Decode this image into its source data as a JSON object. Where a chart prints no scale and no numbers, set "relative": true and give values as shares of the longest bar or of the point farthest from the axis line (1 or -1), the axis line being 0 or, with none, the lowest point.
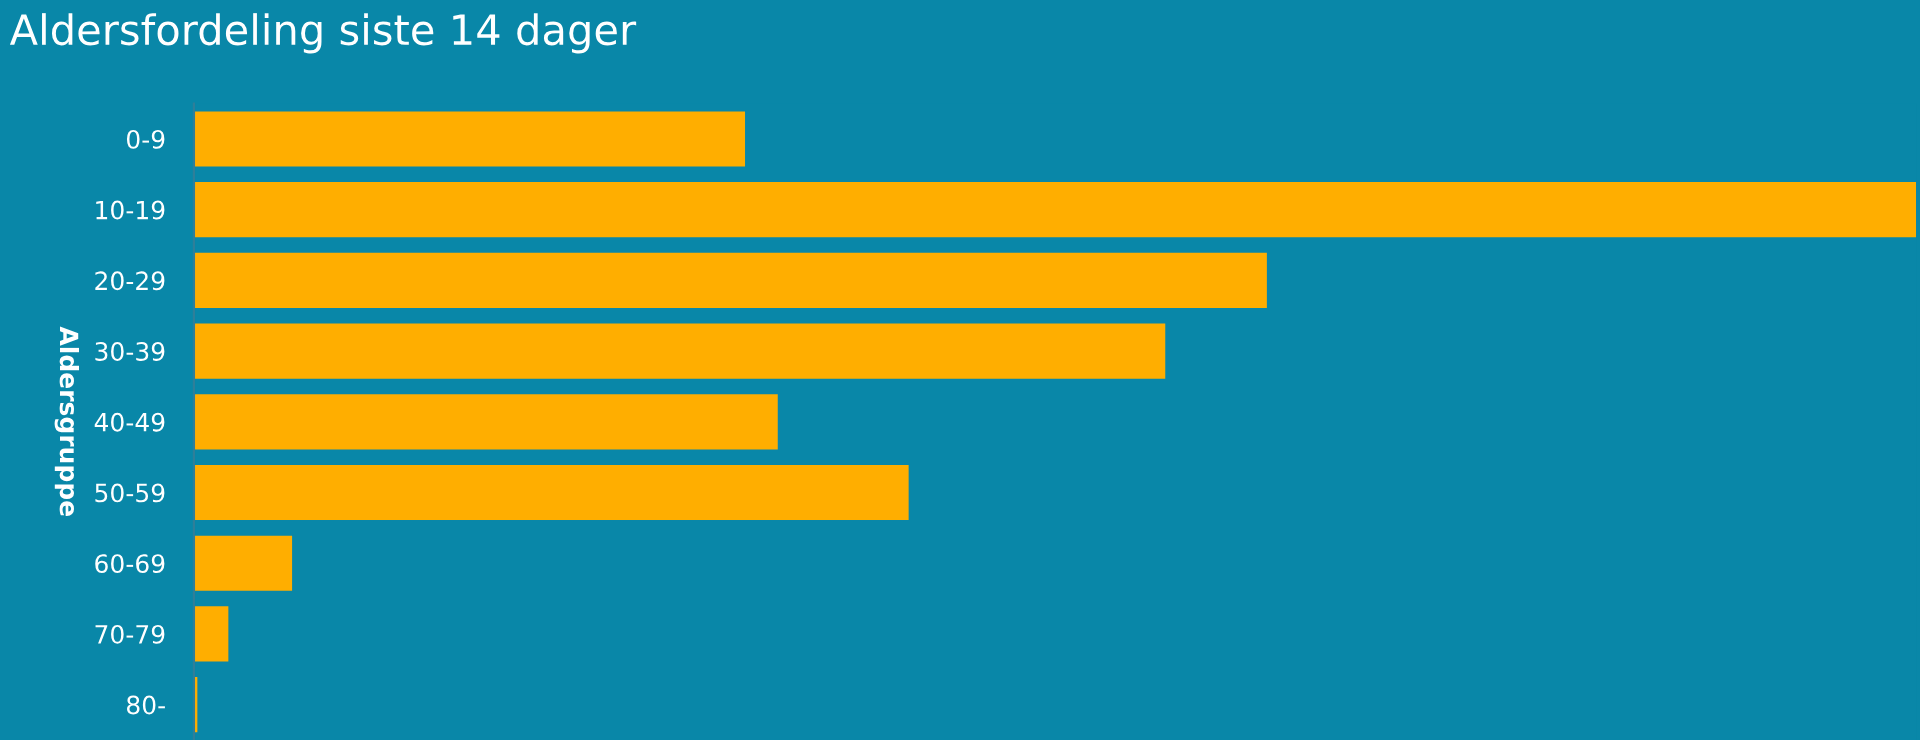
{
  "chart_data": {
    "type": "bar",
    "orientation": "horizontal",
    "relative": true,
    "title": "Aldersfordeling siste 14 dager",
    "ylabel": "Aldersgruppe",
    "categories": [
      "0-9",
      "10-19",
      "20-29",
      "30-39",
      "40-49",
      "50-59",
      "60-69",
      "70-79",
      "80-"
    ],
    "values": [
      0.32,
      1,
      0.623,
      0.564,
      0.339,
      0.415,
      0.057,
      0.02,
      0.002
    ],
    "color": "#ffae00"
  }
}
